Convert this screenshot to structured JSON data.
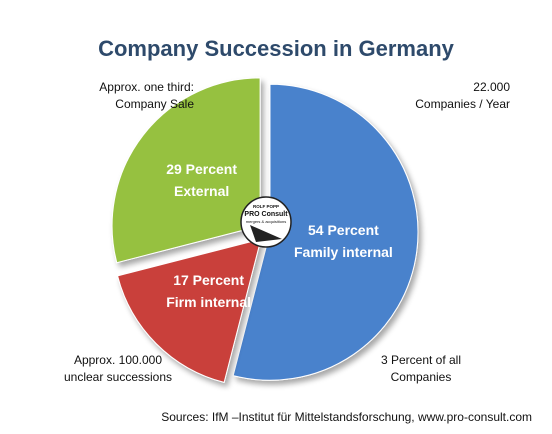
{
  "chart_data": {
    "type": "pie",
    "title": "Company Succession in Germany",
    "slices": [
      {
        "name": "Family internal",
        "value": 54,
        "label_line1": "54 Percent",
        "label_line2": "Family internal",
        "color": "#4a82cc"
      },
      {
        "name": "Firm internal",
        "value": 17,
        "label_line1": "17 Percent",
        "label_line2": "Firm internal",
        "color": "#c9403b"
      },
      {
        "name": "External",
        "value": 29,
        "label_line1": "29 Percent",
        "label_line2": "External",
        "color": "#96c140"
      }
    ],
    "annotations": {
      "top_left": [
        "Approx. one third:",
        "Company Sale"
      ],
      "top_right": [
        "22.000",
        "Companies / Year"
      ],
      "bottom_left": [
        "Approx. 100.000",
        "unclear successions"
      ],
      "bottom_right": [
        "3 Percent of all",
        "Companies"
      ]
    },
    "source": "Sources: IfM –Institut für Mittelstandsforschung, www.pro-consult.com",
    "logo": {
      "line1": "ROLF POPP",
      "line2": "PRO Consult",
      "line3": "mergers & acquisitions"
    }
  }
}
